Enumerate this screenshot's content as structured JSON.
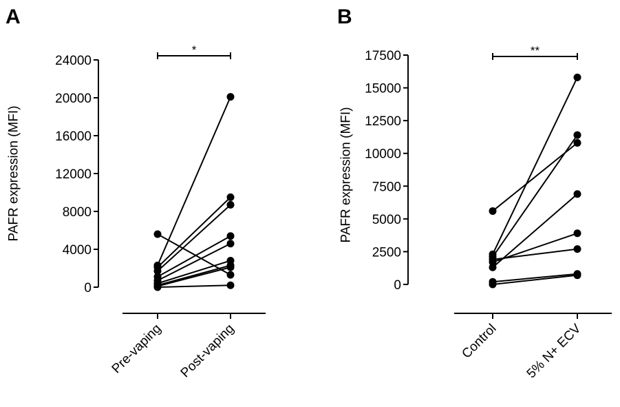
{
  "chart_data": [
    {
      "type": "scatter",
      "panel_label": "A",
      "ylabel": "PAFR expression  (MFI)",
      "ylim": [
        0,
        24000
      ],
      "yticks": [
        0,
        4000,
        8000,
        12000,
        16000,
        20000,
        24000
      ],
      "categories": [
        "Pre-vaping",
        "Post-vaping"
      ],
      "significance": "*",
      "pairs": [
        [
          5600,
          1300
        ],
        [
          2300,
          20100
        ],
        [
          2100,
          9500
        ],
        [
          1700,
          8700
        ],
        [
          1100,
          5400
        ],
        [
          700,
          4600
        ],
        [
          400,
          2800
        ],
        [
          200,
          2300
        ],
        [
          100,
          2100
        ],
        [
          0,
          200
        ]
      ]
    },
    {
      "type": "scatter",
      "panel_label": "B",
      "ylabel": "PAFR expression  (MFI)",
      "ylim": [
        0,
        17500
      ],
      "yticks": [
        0,
        2500,
        5000,
        7500,
        10000,
        12500,
        15000,
        17500
      ],
      "categories": [
        "Control",
        "5% N+ ECV"
      ],
      "significance": "**",
      "pairs": [
        [
          5600,
          10800
        ],
        [
          2300,
          15800
        ],
        [
          2100,
          11400
        ],
        [
          1900,
          2700
        ],
        [
          1300,
          6900
        ],
        [
          1700,
          3900
        ],
        [
          200,
          800
        ],
        [
          0,
          700
        ]
      ]
    }
  ]
}
